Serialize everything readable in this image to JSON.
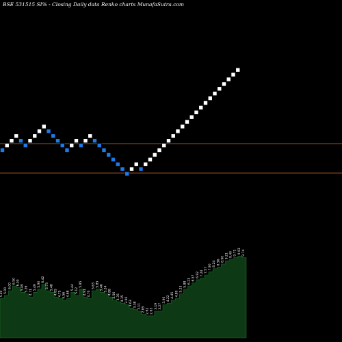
{
  "chart_data": {
    "type": "renko",
    "title": "BSE 531515 SI% -  Closing Daily data  Renko  charts MunafaSutra.com",
    "box_directions": [
      -1,
      1,
      1,
      1,
      -1,
      -1,
      1,
      1,
      1,
      1,
      -1,
      -1,
      -1,
      -1,
      -1,
      1,
      1,
      -1,
      1,
      1,
      -1,
      -1,
      -1,
      -1,
      -1,
      -1,
      -1,
      -1,
      1,
      1,
      -1,
      1,
      1,
      1,
      1,
      1,
      1,
      1,
      1,
      1,
      1,
      1,
      1,
      1,
      1,
      1,
      1,
      1,
      1,
      1,
      1,
      1
    ],
    "support_levels": [
      "upper",
      "lower"
    ],
    "volume_labels": [
      "5.00",
      "5.00",
      "6.00",
      "6.50",
      "6.00",
      "5.49",
      "5.26",
      "4.71",
      "5.49",
      "5.90",
      "6.42",
      "5.73",
      "5.48",
      "4.85",
      "4.75",
      "4.56",
      "4.68",
      "5.44",
      "5.12",
      "5.85",
      "4.91",
      "4.70",
      "5.63",
      "5.85",
      "5.46",
      "5.24",
      "4.88",
      "4.56",
      "4.35",
      "4.15",
      "3.90",
      "3.63",
      "3.38",
      "3.11",
      "2.85",
      "2.62",
      "2.63",
      "3.19",
      "3.27",
      "3.90",
      "4.22",
      "4.45",
      "4.80",
      "5.23",
      "5.88",
      "6.21",
      "6.57",
      "6.92",
      "7.24",
      "7.57",
      "7.90",
      "8.24",
      "8.56",
      "8.90",
      "9.21",
      "9.40",
      "9.71",
      "9.93",
      "9.74"
    ],
    "volume_values": [
      25,
      27,
      30,
      33,
      32,
      29,
      28,
      26,
      29,
      31,
      34,
      30,
      29,
      26,
      25,
      24,
      25,
      29,
      27,
      31,
      26,
      25,
      30,
      31,
      29,
      28,
      26,
      24,
      23,
      22,
      21,
      19,
      18,
      17,
      15,
      14,
      14,
      17,
      17,
      21,
      22,
      24,
      25,
      28,
      31,
      33,
      35,
      37,
      38,
      40,
      42,
      44,
      45,
      47,
      49,
      50,
      51,
      52,
      51
    ],
    "colors": {
      "up": "#ffffff",
      "down": "#1e7ae6",
      "support": "#a0521a",
      "volume_fill": "#0d3a14",
      "background": "#000000",
      "label": "#ffffff"
    }
  }
}
